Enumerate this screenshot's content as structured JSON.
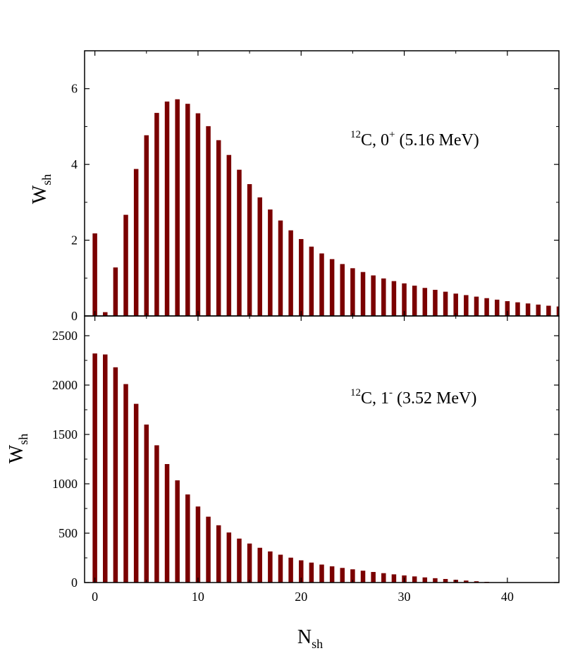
{
  "bar_color": "#7a0000",
  "chart_data": [
    {
      "type": "bar",
      "panel": "top",
      "ylabel": {
        "main": "W",
        "sub": "sh"
      },
      "xlabel": {
        "main": "N",
        "sub": "sh"
      },
      "annotation": {
        "sup": "12",
        "text1": "C, 0",
        "sup2": "+",
        "text2": " (5.16 MeV)"
      },
      "xlim": [
        -1,
        45
      ],
      "ylim": [
        0,
        7
      ],
      "xticks": [
        0,
        10,
        20,
        30,
        40
      ],
      "yticks": [
        0,
        2,
        4,
        6
      ],
      "ytick_labels": [
        "0",
        "2",
        "4",
        "6"
      ],
      "x": [
        0,
        1,
        2,
        3,
        4,
        5,
        6,
        7,
        8,
        9,
        10,
        11,
        12,
        13,
        14,
        15,
        16,
        17,
        18,
        19,
        20,
        21,
        22,
        23,
        24,
        25,
        26,
        27,
        28,
        29,
        30,
        31,
        32,
        33,
        34,
        35,
        36,
        37,
        38,
        39,
        40,
        41,
        42,
        43,
        44,
        45
      ],
      "values": [
        2.18,
        0.1,
        1.28,
        2.67,
        3.88,
        4.77,
        5.36,
        5.66,
        5.72,
        5.6,
        5.35,
        5.01,
        4.64,
        4.25,
        3.86,
        3.48,
        3.13,
        2.81,
        2.52,
        2.26,
        2.03,
        1.83,
        1.65,
        1.5,
        1.37,
        1.26,
        1.16,
        1.07,
        0.99,
        0.92,
        0.86,
        0.8,
        0.74,
        0.69,
        0.64,
        0.59,
        0.55,
        0.51,
        0.47,
        0.43,
        0.39,
        0.36,
        0.33,
        0.3,
        0.27,
        0.25
      ]
    },
    {
      "type": "bar",
      "panel": "bottom",
      "ylabel": {
        "main": "W",
        "sub": "sh"
      },
      "xlabel": {
        "main": "N",
        "sub": "sh"
      },
      "annotation": {
        "sup": "12",
        "text1": "C, 1",
        "sup2": "-",
        "text2": " (3.52 MeV)"
      },
      "xlim": [
        -1,
        45
      ],
      "ylim": [
        0,
        2700
      ],
      "xticks": [
        0,
        10,
        20,
        30,
        40
      ],
      "xtick_labels": [
        "0",
        "10",
        "20",
        "30",
        "40"
      ],
      "yticks": [
        0,
        500,
        1000,
        1500,
        2000,
        2500
      ],
      "ytick_labels": [
        "0",
        "500",
        "1000",
        "1500",
        "2000",
        "2500"
      ],
      "x": [
        0,
        1,
        2,
        3,
        4,
        5,
        6,
        7,
        8,
        9,
        10,
        11,
        12,
        13,
        14,
        15,
        16,
        17,
        18,
        19,
        20,
        21,
        22,
        23,
        24,
        25,
        26,
        27,
        28,
        29,
        30,
        31,
        32,
        33,
        34,
        35,
        36,
        37,
        38,
        39,
        40,
        41,
        42,
        43,
        44,
        45
      ],
      "values": [
        2320,
        2310,
        2180,
        2010,
        1810,
        1600,
        1390,
        1200,
        1035,
        892,
        770,
        667,
        580,
        507,
        445,
        395,
        352,
        315,
        282,
        252,
        225,
        202,
        182,
        164,
        148,
        134,
        120,
        107,
        95,
        83,
        72,
        62,
        52,
        44,
        36,
        28,
        20,
        13,
        7,
        3,
        1,
        0,
        0,
        0,
        0,
        0
      ]
    }
  ]
}
